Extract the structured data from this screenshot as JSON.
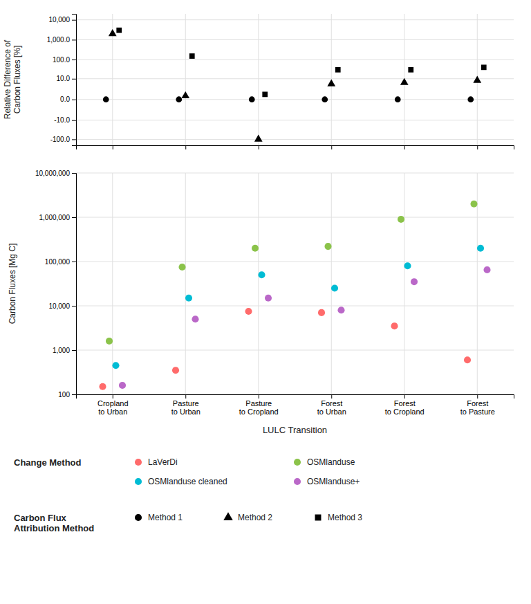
{
  "chart_data": [
    {
      "type": "scatter",
      "y_label": "Relative Difference of\nCarbon Fluxes [%]",
      "categories": [
        "Cropland\nto Urban",
        "Pasture\nto Urban",
        "Pasture\nto Cropland",
        "Forest\nto Urban",
        "Forest\nto Cropland",
        "Forest\nto Pasture"
      ],
      "log": "y",
      "ylim": [
        -200,
        20000
      ],
      "yticks": [
        {
          "value": -100,
          "label": "-100.0"
        },
        {
          "value": -10,
          "label": "-10.0"
        },
        {
          "value": 0,
          "label": "0.0"
        },
        {
          "value": 10,
          "label": "10.0"
        },
        {
          "value": 100,
          "label": "100.0"
        },
        {
          "value": 1000,
          "label": "1,000.0"
        },
        {
          "value": 10000,
          "label": "10,000"
        }
      ],
      "grid": true,
      "tick_labels": "y",
      "legend": "bottom",
      "legend_title": "Carbon Flux\nAttribution Method",
      "series": [
        {
          "name": "Method 1",
          "color": "#000000",
          "marker": "circle",
          "values": [
            0.0,
            0.0,
            0.0,
            0.0,
            0.0,
            0.0
          ]
        },
        {
          "name": "Method 2",
          "color": "#000000",
          "marker": "triangle",
          "values": [
            2000.0,
            0.5,
            -100.0,
            5.0,
            6.0,
            8.0
          ]
        },
        {
          "name": "Method 3",
          "color": "#000000",
          "marker": "square",
          "values": [
            3000.0,
            150.0,
            0.8,
            30.0,
            30.0,
            40.0
          ]
        }
      ]
    },
    {
      "type": "scatter",
      "x_label": "LULC Transition",
      "y_label": "Carbon Fluxes [Mg C]",
      "categories": [
        "Cropland\nto Urban",
        "Pasture\nto Urban",
        "Pasture\nto Cropland",
        "Forest\nto Urban",
        "Forest\nto Cropland",
        "Forest\nto Pasture"
      ],
      "log": "y",
      "ylim": [
        100,
        10000000
      ],
      "yticks": [
        100,
        {
          "value": 1000,
          "label": "1,000"
        },
        {
          "value": 10000,
          "label": "10,000"
        },
        {
          "value": 100000,
          "label": "100,000"
        },
        {
          "value": 1000000,
          "label": "1,000,000"
        },
        {
          "value": 10000000,
          "label": "10,000,000"
        }
      ],
      "grid": true,
      "legend": "bottom",
      "legend_title": "Change Method",
      "series": [
        {
          "name": "LaVerDi",
          "color": "#FF6B6B",
          "marker": "circle",
          "values": [
            150.0,
            350.0,
            7500.0,
            7000.0,
            3500.0,
            600.0
          ]
        },
        {
          "name": "OSMlanduse",
          "color": "#8BC34A",
          "marker": "circle",
          "values": [
            1600.0,
            75000.0,
            200000.0,
            220000.0,
            900000.0,
            2000000.0
          ]
        },
        {
          "name": "OSMlanduse cleaned",
          "color": "#00BCD4",
          "marker": "circle",
          "values": [
            450.0,
            15000.0,
            50000.0,
            25000.0,
            80000.0,
            200000.0
          ]
        },
        {
          "name": "OSMlanduse+",
          "color": "#BA68C8",
          "marker": "circle",
          "values": [
            160.0,
            5000.0,
            15000.0,
            8000.0,
            35000.0,
            65000.0
          ]
        }
      ]
    }
  ]
}
